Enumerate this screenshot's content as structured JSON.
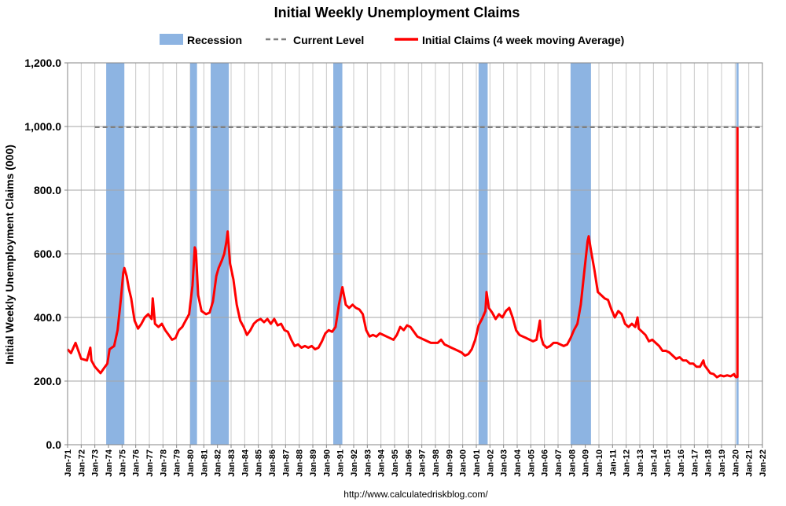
{
  "chart_data": {
    "type": "line",
    "title": "Initial Weekly Unemployment Claims",
    "ylabel": "Initial Weekly Unemployment Claims (000)",
    "xlabel": "",
    "ylim": [
      0,
      1200
    ],
    "y_ticks": [
      "0.0",
      "200.0",
      "400.0",
      "600.0",
      "800.0",
      "1,000.0",
      "1,200.0"
    ],
    "x_range": [
      "1971-01",
      "2022-01"
    ],
    "x_ticks": [
      "Jan-71",
      "Jan-72",
      "Jan-73",
      "Jan-74",
      "Jan-75",
      "Jan-76",
      "Jan-77",
      "Jan-78",
      "Jan-79",
      "Jan-80",
      "Jan-81",
      "Jan-82",
      "Jan-83",
      "Jan-84",
      "Jan-85",
      "Jan-86",
      "Jan-87",
      "Jan-88",
      "Jan-89",
      "Jan-90",
      "Jan-91",
      "Jan-92",
      "Jan-93",
      "Jan-94",
      "Jan-95",
      "Jan-96",
      "Jan-97",
      "Jan-98",
      "Jan-99",
      "Jan-00",
      "Jan-01",
      "Jan-02",
      "Jan-03",
      "Jan-04",
      "Jan-05",
      "Jan-06",
      "Jan-07",
      "Jan-08",
      "Jan-09",
      "Jan-10",
      "Jan-11",
      "Jan-12",
      "Jan-13",
      "Jan-14",
      "Jan-15",
      "Jan-16",
      "Jan-17",
      "Jan-18",
      "Jan-19",
      "Jan-20",
      "Jan-21",
      "Jan-22"
    ],
    "grid": true,
    "legend_position": "top",
    "legend": [
      {
        "label": "Recession",
        "kind": "band",
        "color": "#8db4e2"
      },
      {
        "label": "Current Level",
        "kind": "dashed-line",
        "color": "#7f7f7f"
      },
      {
        "label": "Initial Claims (4 week moving Average)",
        "kind": "line",
        "color": "#ff0000"
      }
    ],
    "recessions": [
      [
        "1973-11",
        "1975-03"
      ],
      [
        "1980-01",
        "1980-07"
      ],
      [
        "1981-07",
        "1982-11"
      ],
      [
        "1990-07",
        "1991-03"
      ],
      [
        "2001-03",
        "2001-11"
      ],
      [
        "2007-12",
        "2009-06"
      ],
      [
        "2020-02",
        "2020-04"
      ]
    ],
    "current_level": {
      "value": 998,
      "x_start": "1973-01",
      "x_end": "2022-01"
    },
    "series": [
      {
        "name": "Initial Claims (4 week moving Average)",
        "color": "#ff0000",
        "points": [
          [
            "1971-01",
            300
          ],
          [
            "1971-04",
            288
          ],
          [
            "1971-08",
            320
          ],
          [
            "1971-10",
            300
          ],
          [
            "1972-01",
            270
          ],
          [
            "1972-06",
            265
          ],
          [
            "1972-09",
            305
          ],
          [
            "1972-10",
            265
          ],
          [
            "1973-01",
            245
          ],
          [
            "1973-06",
            225
          ],
          [
            "1973-09",
            240
          ],
          [
            "1973-12",
            255
          ],
          [
            "1974-02",
            300
          ],
          [
            "1974-06",
            310
          ],
          [
            "1974-09",
            360
          ],
          [
            "1974-12",
            460
          ],
          [
            "1975-02",
            540
          ],
          [
            "1975-03",
            555
          ],
          [
            "1975-05",
            530
          ],
          [
            "1975-07",
            490
          ],
          [
            "1975-09",
            460
          ],
          [
            "1975-12",
            390
          ],
          [
            "1976-03",
            365
          ],
          [
            "1976-06",
            380
          ],
          [
            "1976-09",
            400
          ],
          [
            "1976-12",
            410
          ],
          [
            "1977-03",
            395
          ],
          [
            "1977-04",
            460
          ],
          [
            "1977-06",
            380
          ],
          [
            "1977-09",
            370
          ],
          [
            "1977-12",
            380
          ],
          [
            "1978-03",
            360
          ],
          [
            "1978-06",
            345
          ],
          [
            "1978-09",
            330
          ],
          [
            "1978-12",
            335
          ],
          [
            "1979-03",
            360
          ],
          [
            "1979-06",
            370
          ],
          [
            "1979-09",
            390
          ],
          [
            "1979-12",
            410
          ],
          [
            "1980-01",
            440
          ],
          [
            "1980-03",
            500
          ],
          [
            "1980-05",
            620
          ],
          [
            "1980-06",
            610
          ],
          [
            "1980-08",
            470
          ],
          [
            "1980-11",
            420
          ],
          [
            "1981-03",
            410
          ],
          [
            "1981-06",
            415
          ],
          [
            "1981-09",
            450
          ],
          [
            "1981-12",
            530
          ],
          [
            "1982-02",
            555
          ],
          [
            "1982-05",
            580
          ],
          [
            "1982-07",
            600
          ],
          [
            "1982-09",
            640
          ],
          [
            "1982-10",
            670
          ],
          [
            "1982-12",
            570
          ],
          [
            "1983-03",
            520
          ],
          [
            "1983-06",
            440
          ],
          [
            "1983-09",
            390
          ],
          [
            "1983-12",
            370
          ],
          [
            "1984-03",
            345
          ],
          [
            "1984-06",
            360
          ],
          [
            "1984-09",
            380
          ],
          [
            "1984-12",
            390
          ],
          [
            "1985-03",
            395
          ],
          [
            "1985-06",
            385
          ],
          [
            "1985-09",
            395
          ],
          [
            "1985-12",
            380
          ],
          [
            "1986-03",
            395
          ],
          [
            "1986-06",
            375
          ],
          [
            "1986-09",
            380
          ],
          [
            "1986-12",
            360
          ],
          [
            "1987-03",
            355
          ],
          [
            "1987-06",
            330
          ],
          [
            "1987-09",
            310
          ],
          [
            "1987-12",
            315
          ],
          [
            "1988-03",
            305
          ],
          [
            "1988-06",
            310
          ],
          [
            "1988-09",
            305
          ],
          [
            "1988-12",
            310
          ],
          [
            "1989-03",
            300
          ],
          [
            "1989-06",
            305
          ],
          [
            "1989-09",
            325
          ],
          [
            "1989-12",
            350
          ],
          [
            "1990-03",
            360
          ],
          [
            "1990-06",
            355
          ],
          [
            "1990-09",
            370
          ],
          [
            "1990-12",
            440
          ],
          [
            "1991-03",
            495
          ],
          [
            "1991-06",
            440
          ],
          [
            "1991-09",
            430
          ],
          [
            "1991-12",
            440
          ],
          [
            "1992-03",
            430
          ],
          [
            "1992-06",
            425
          ],
          [
            "1992-09",
            410
          ],
          [
            "1992-12",
            360
          ],
          [
            "1993-03",
            340
          ],
          [
            "1993-06",
            345
          ],
          [
            "1993-09",
            340
          ],
          [
            "1993-12",
            350
          ],
          [
            "1994-03",
            345
          ],
          [
            "1994-06",
            340
          ],
          [
            "1994-09",
            335
          ],
          [
            "1994-12",
            330
          ],
          [
            "1995-03",
            345
          ],
          [
            "1995-06",
            370
          ],
          [
            "1995-09",
            360
          ],
          [
            "1995-12",
            375
          ],
          [
            "1996-03",
            370
          ],
          [
            "1996-06",
            355
          ],
          [
            "1996-09",
            340
          ],
          [
            "1996-12",
            335
          ],
          [
            "1997-03",
            330
          ],
          [
            "1997-06",
            325
          ],
          [
            "1997-09",
            320
          ],
          [
            "1997-12",
            320
          ],
          [
            "1998-03",
            320
          ],
          [
            "1998-06",
            330
          ],
          [
            "1998-09",
            315
          ],
          [
            "1998-12",
            310
          ],
          [
            "1999-03",
            305
          ],
          [
            "1999-06",
            300
          ],
          [
            "1999-09",
            295
          ],
          [
            "1999-12",
            290
          ],
          [
            "2000-03",
            280
          ],
          [
            "2000-06",
            285
          ],
          [
            "2000-09",
            300
          ],
          [
            "2000-12",
            330
          ],
          [
            "2001-03",
            375
          ],
          [
            "2001-06",
            395
          ],
          [
            "2001-09",
            420
          ],
          [
            "2001-10",
            480
          ],
          [
            "2001-12",
            430
          ],
          [
            "2002-03",
            415
          ],
          [
            "2002-06",
            395
          ],
          [
            "2002-09",
            410
          ],
          [
            "2002-12",
            400
          ],
          [
            "2003-03",
            420
          ],
          [
            "2003-06",
            430
          ],
          [
            "2003-09",
            400
          ],
          [
            "2003-12",
            360
          ],
          [
            "2004-03",
            345
          ],
          [
            "2004-06",
            340
          ],
          [
            "2004-09",
            335
          ],
          [
            "2004-12",
            330
          ],
          [
            "2005-03",
            325
          ],
          [
            "2005-06",
            330
          ],
          [
            "2005-09",
            390
          ],
          [
            "2005-10",
            340
          ],
          [
            "2005-12",
            315
          ],
          [
            "2006-03",
            305
          ],
          [
            "2006-06",
            310
          ],
          [
            "2006-09",
            320
          ],
          [
            "2006-12",
            320
          ],
          [
            "2007-03",
            315
          ],
          [
            "2007-06",
            310
          ],
          [
            "2007-09",
            315
          ],
          [
            "2007-12",
            335
          ],
          [
            "2008-03",
            360
          ],
          [
            "2008-06",
            380
          ],
          [
            "2008-09",
            440
          ],
          [
            "2008-12",
            540
          ],
          [
            "2009-03",
            640
          ],
          [
            "2009-04",
            655
          ],
          [
            "2009-06",
            610
          ],
          [
            "2009-09",
            550
          ],
          [
            "2009-12",
            480
          ],
          [
            "2010-03",
            470
          ],
          [
            "2010-06",
            460
          ],
          [
            "2010-09",
            455
          ],
          [
            "2010-12",
            425
          ],
          [
            "2011-03",
            400
          ],
          [
            "2011-06",
            420
          ],
          [
            "2011-09",
            410
          ],
          [
            "2011-12",
            380
          ],
          [
            "2012-03",
            370
          ],
          [
            "2012-06",
            380
          ],
          [
            "2012-09",
            370
          ],
          [
            "2012-11",
            400
          ],
          [
            "2012-12",
            365
          ],
          [
            "2013-03",
            355
          ],
          [
            "2013-06",
            345
          ],
          [
            "2013-09",
            325
          ],
          [
            "2013-12",
            330
          ],
          [
            "2014-03",
            320
          ],
          [
            "2014-06",
            310
          ],
          [
            "2014-09",
            295
          ],
          [
            "2014-12",
            295
          ],
          [
            "2015-03",
            290
          ],
          [
            "2015-06",
            280
          ],
          [
            "2015-09",
            270
          ],
          [
            "2015-12",
            275
          ],
          [
            "2016-03",
            265
          ],
          [
            "2016-06",
            265
          ],
          [
            "2016-09",
            255
          ],
          [
            "2016-12",
            255
          ],
          [
            "2017-03",
            245
          ],
          [
            "2017-06",
            245
          ],
          [
            "2017-09",
            265
          ],
          [
            "2017-10",
            250
          ],
          [
            "2017-12",
            240
          ],
          [
            "2018-03",
            225
          ],
          [
            "2018-06",
            222
          ],
          [
            "2018-09",
            212
          ],
          [
            "2018-12",
            218
          ],
          [
            "2019-03",
            215
          ],
          [
            "2019-06",
            218
          ],
          [
            "2019-09",
            215
          ],
          [
            "2019-12",
            222
          ],
          [
            "2020-01",
            215
          ],
          [
            "2020-02",
            212
          ],
          [
            "2020-03",
            213
          ],
          [
            "2020-03",
            998
          ]
        ]
      }
    ]
  },
  "source_url": "http://www.calculatedriskblog.com/"
}
